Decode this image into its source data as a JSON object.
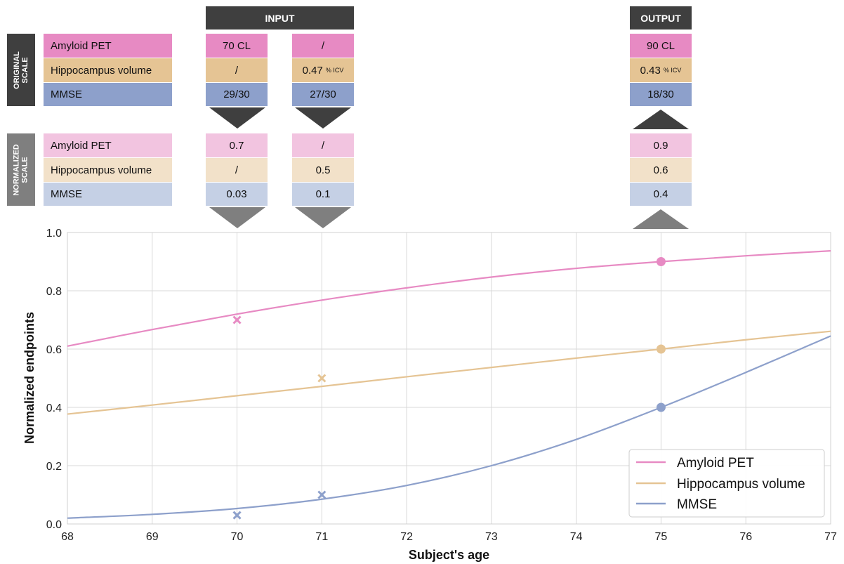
{
  "headers": {
    "input": "INPUT",
    "output": "OUTPUT"
  },
  "side_labels": {
    "original": [
      "ORIGINAL",
      "SCALE"
    ],
    "normalized": [
      "NORMALIZED",
      "SCALE"
    ]
  },
  "colors": {
    "amyloid": "#e78ac3",
    "hippo": "#e5c494",
    "mmse": "#8da0cb",
    "amyloid_light": "#f2c4e0",
    "hippo_light": "#f2e1c9",
    "mmse_light": "#c5d0e5",
    "dark_header": "#3f3f3f",
    "gray_header": "#7f7f7f"
  },
  "table": {
    "rows": [
      "Amyloid PET",
      "Hippocampus volume",
      "MMSE"
    ],
    "original": {
      "col_70": [
        "70 CL",
        "/",
        "29/30"
      ],
      "col_71": [
        "/",
        "0.47",
        "27/30"
      ],
      "col_71_unit": "% ICV",
      "col_out": [
        "90 CL",
        "0.43",
        "18/30"
      ],
      "col_out_unit": "% ICV"
    },
    "normalized": {
      "col_70": [
        "0.7",
        "/",
        "0.03"
      ],
      "col_71": [
        "/",
        "0.5",
        "0.1"
      ],
      "col_out": [
        "0.9",
        "0.6",
        "0.4"
      ]
    }
  },
  "chart_data": {
    "type": "line",
    "xlabel": "Subject's age",
    "ylabel": "Normalized endpoints",
    "xlim": [
      68,
      77
    ],
    "ylim": [
      0,
      1
    ],
    "xticks": [
      "68",
      "69",
      "70",
      "71",
      "72",
      "73",
      "74",
      "75",
      "76",
      "77"
    ],
    "yticks": [
      "0.0",
      "0.2",
      "0.4",
      "0.6",
      "0.8",
      "1.0"
    ],
    "grid": true,
    "legend_position": "bottom-right",
    "series": [
      {
        "name": "Amyloid PET",
        "color": "#e78ac3",
        "x": [
          68,
          69,
          70,
          71,
          72,
          73,
          74,
          75,
          76,
          77
        ],
        "y": [
          0.61,
          0.667,
          0.72,
          0.768,
          0.81,
          0.847,
          0.877,
          0.9,
          0.92,
          0.937
        ]
      },
      {
        "name": "Hippocampus volume",
        "color": "#e5c494",
        "x": [
          68,
          69,
          70,
          71,
          72,
          73,
          74,
          75,
          76,
          77
        ],
        "y": [
          0.377,
          0.408,
          0.44,
          0.472,
          0.505,
          0.537,
          0.569,
          0.6,
          0.632,
          0.661
        ]
      },
      {
        "name": "MMSE",
        "color": "#8da0cb",
        "x": [
          68,
          69,
          70,
          71,
          72,
          73,
          74,
          75,
          76,
          77
        ],
        "y": [
          0.02,
          0.033,
          0.053,
          0.085,
          0.132,
          0.2,
          0.29,
          0.4,
          0.52,
          0.645
        ]
      }
    ],
    "observations": [
      {
        "series": "Amyloid PET",
        "x": 70,
        "y": 0.7,
        "marker": "x"
      },
      {
        "series": "Hippocampus volume",
        "x": 71,
        "y": 0.5,
        "marker": "x"
      },
      {
        "series": "MMSE",
        "x": 70,
        "y": 0.03,
        "marker": "x"
      },
      {
        "series": "MMSE",
        "x": 71,
        "y": 0.1,
        "marker": "x"
      }
    ],
    "predictions": [
      {
        "series": "Amyloid PET",
        "x": 75,
        "y": 0.9,
        "marker": "circle"
      },
      {
        "series": "Hippocampus volume",
        "x": 75,
        "y": 0.6,
        "marker": "circle"
      },
      {
        "series": "MMSE",
        "x": 75,
        "y": 0.4,
        "marker": "circle"
      }
    ]
  }
}
